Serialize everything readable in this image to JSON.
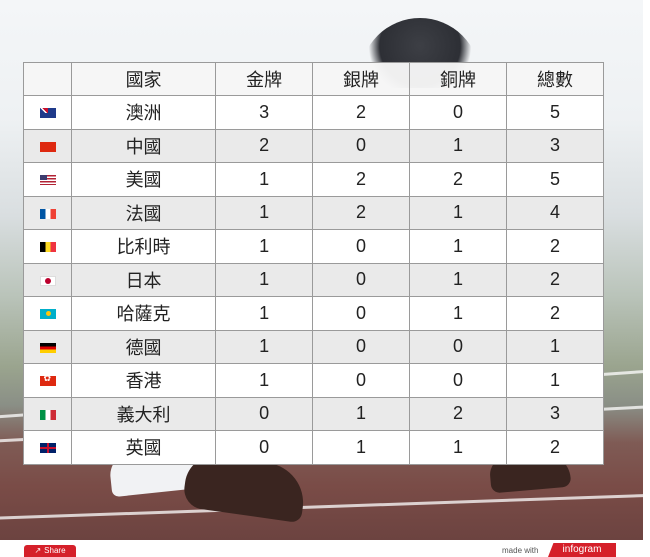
{
  "table": {
    "headers": [
      "",
      "國家",
      "金牌",
      "銀牌",
      "銅牌",
      "總數"
    ],
    "rows": [
      {
        "flag": "australia-flag-icon",
        "country": "澳洲",
        "gold": "3",
        "silver": "2",
        "bronze": "0",
        "total": "5"
      },
      {
        "flag": "china-flag-icon",
        "country": "中國",
        "gold": "2",
        "silver": "0",
        "bronze": "1",
        "total": "3"
      },
      {
        "flag": "usa-flag-icon",
        "country": "美國",
        "gold": "1",
        "silver": "2",
        "bronze": "2",
        "total": "5"
      },
      {
        "flag": "france-flag-icon",
        "country": "法國",
        "gold": "1",
        "silver": "2",
        "bronze": "1",
        "total": "4"
      },
      {
        "flag": "belgium-flag-icon",
        "country": "比利時",
        "gold": "1",
        "silver": "0",
        "bronze": "1",
        "total": "2"
      },
      {
        "flag": "japan-flag-icon",
        "country": "日本",
        "gold": "1",
        "silver": "0",
        "bronze": "1",
        "total": "2"
      },
      {
        "flag": "kazakhstan-flag-icon",
        "country": "哈薩克",
        "gold": "1",
        "silver": "0",
        "bronze": "1",
        "total": "2"
      },
      {
        "flag": "germany-flag-icon",
        "country": "德國",
        "gold": "1",
        "silver": "0",
        "bronze": "0",
        "total": "1"
      },
      {
        "flag": "hongkong-flag-icon",
        "country": "香港",
        "gold": "1",
        "silver": "0",
        "bronze": "0",
        "total": "1"
      },
      {
        "flag": "italy-flag-icon",
        "country": "義大利",
        "gold": "0",
        "silver": "1",
        "bronze": "2",
        "total": "3"
      },
      {
        "flag": "uk-flag-icon",
        "country": "英國",
        "gold": "0",
        "silver": "1",
        "bronze": "1",
        "total": "2"
      }
    ]
  },
  "footer": {
    "share_label": "Share",
    "share_icon": "share-icon",
    "made_with": "made with",
    "brand": "infogram"
  },
  "colors": {
    "brand_red": "#d5202a",
    "row_alt": "#eaeaea",
    "border": "#9a9a9a"
  }
}
